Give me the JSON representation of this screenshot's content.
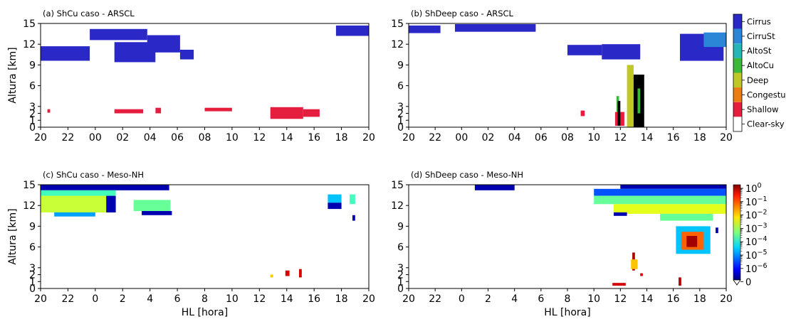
{
  "chart_data": [
    {
      "type": "heatmap",
      "title": "(a) ShCu caso - ARSCL",
      "ylabel": "Altura [km]",
      "xlabel": "",
      "xticks": [
        "20",
        "22",
        "00",
        "02",
        "04",
        "06",
        "08",
        "10",
        "12",
        "14",
        "16",
        "18",
        "20"
      ],
      "yticks": [
        "0",
        "1",
        "2",
        "3",
        "6",
        "9",
        "12",
        "15"
      ],
      "ylim": [
        0,
        15
      ],
      "data": [
        {
          "cls": "Cirrus",
          "x0": 0.0,
          "x1": 3.6,
          "y0": 9.6,
          "y1": 11.7
        },
        {
          "cls": "Cirrus",
          "x0": 3.6,
          "x1": 7.8,
          "y0": 12.6,
          "y1": 14.2
        },
        {
          "cls": "Cirrus",
          "x0": 5.4,
          "x1": 8.4,
          "y0": 9.4,
          "y1": 12.3
        },
        {
          "cls": "Cirrus",
          "x0": 7.8,
          "x1": 10.2,
          "y0": 10.8,
          "y1": 13.3
        },
        {
          "cls": "Cirrus",
          "x0": 10.2,
          "x1": 11.2,
          "y0": 9.8,
          "y1": 11.2
        },
        {
          "cls": "Cirrus",
          "x0": 21.6,
          "x1": 24.0,
          "y0": 13.2,
          "y1": 14.7
        },
        {
          "cls": "Shallow",
          "x0": 0.5,
          "x1": 0.7,
          "y0": 2.1,
          "y1": 2.6
        },
        {
          "cls": "Shallow",
          "x0": 5.4,
          "x1": 7.5,
          "y0": 2.0,
          "y1": 2.6
        },
        {
          "cls": "Shallow",
          "x0": 8.4,
          "x1": 8.8,
          "y0": 2.0,
          "y1": 2.8
        },
        {
          "cls": "Shallow",
          "x0": 12.0,
          "x1": 14.0,
          "y0": 2.3,
          "y1": 2.8
        },
        {
          "cls": "Shallow",
          "x0": 16.8,
          "x1": 19.2,
          "y0": 1.2,
          "y1": 2.9
        },
        {
          "cls": "Shallow",
          "x0": 19.2,
          "x1": 20.4,
          "y0": 1.5,
          "y1": 2.6
        }
      ]
    },
    {
      "type": "heatmap",
      "title": "(b) ShDeep caso - ARSCL",
      "ylabel": "",
      "xlabel": "",
      "xticks": [
        "20",
        "22",
        "00",
        "02",
        "04",
        "06",
        "08",
        "10",
        "12",
        "14",
        "16",
        "18",
        "20"
      ],
      "yticks": [
        "0",
        "1",
        "2",
        "3",
        "6",
        "9",
        "12",
        "15"
      ],
      "ylim": [
        0,
        15
      ],
      "data": [
        {
          "cls": "Cirrus",
          "x0": 0.0,
          "x1": 2.4,
          "y0": 13.6,
          "y1": 14.7
        },
        {
          "cls": "Cirrus",
          "x0": 3.5,
          "x1": 9.6,
          "y0": 13.8,
          "y1": 14.9
        },
        {
          "cls": "Cirrus",
          "x0": 12.0,
          "x1": 14.6,
          "y0": 10.4,
          "y1": 11.9
        },
        {
          "cls": "Cirrus",
          "x0": 14.6,
          "x1": 17.5,
          "y0": 9.8,
          "y1": 12.0
        },
        {
          "cls": "Cirrus",
          "x0": 20.5,
          "x1": 23.8,
          "y0": 9.6,
          "y1": 13.5
        },
        {
          "cls": "CirruSt",
          "x0": 22.3,
          "x1": 24.0,
          "y0": 11.6,
          "y1": 13.7
        },
        {
          "cls": "Shallow",
          "x0": 13.0,
          "x1": 13.3,
          "y0": 1.6,
          "y1": 2.4
        },
        {
          "cls": "Shallow",
          "x0": 15.6,
          "x1": 16.3,
          "y0": 0.2,
          "y1": 2.2
        },
        {
          "cls": "AltoCu",
          "x0": 15.7,
          "x1": 15.9,
          "y0": 2.2,
          "y1": 4.5
        },
        {
          "cls": "Congestus",
          "x0": 15.8,
          "x1": 16.0,
          "y0": 0.2,
          "y1": 3.8
        },
        {
          "cls": "Deep",
          "x0": 16.5,
          "x1": 17.0,
          "y0": 0.0,
          "y1": 9.0
        },
        {
          "cls": "Congestus",
          "x0": 17.0,
          "x1": 17.8,
          "y0": 0.0,
          "y1": 7.6
        },
        {
          "cls": "AltoCu",
          "x0": 17.3,
          "x1": 17.5,
          "y0": 2.0,
          "y1": 5.6
        }
      ]
    },
    {
      "type": "heatmap",
      "title": "(c) ShCu caso -  Meso-NH",
      "ylabel": "Altura [km]",
      "xlabel": "HL [hora]",
      "xticks": [
        "20",
        "22",
        "0",
        "2",
        "4",
        "6",
        "8",
        "10",
        "12",
        "14",
        "16",
        "18",
        "20"
      ],
      "yticks": [
        "0",
        "1",
        "2",
        "3",
        "6",
        "9",
        "12",
        "15"
      ],
      "ylim": [
        0,
        15
      ],
      "data": [
        {
          "v": 1e-06,
          "x0": 0.0,
          "x1": 9.4,
          "y0": 14.2,
          "y1": 15.0
        },
        {
          "v": 0.0003,
          "x0": 0.0,
          "x1": 5.5,
          "y0": 13.4,
          "y1": 14.2
        },
        {
          "v": 0.002,
          "x0": 0.0,
          "x1": 4.8,
          "y0": 11.0,
          "y1": 13.4
        },
        {
          "v": 3e-05,
          "x0": 1.0,
          "x1": 4.0,
          "y0": 10.4,
          "y1": 11.0
        },
        {
          "v": 1e-06,
          "x0": 4.8,
          "x1": 5.5,
          "y0": 11.0,
          "y1": 13.4
        },
        {
          "v": 0.0005,
          "x0": 6.8,
          "x1": 9.5,
          "y0": 11.2,
          "y1": 12.8
        },
        {
          "v": 1e-06,
          "x0": 7.4,
          "x1": 9.6,
          "y0": 10.6,
          "y1": 11.2
        },
        {
          "v": 5e-05,
          "x0": 21.0,
          "x1": 22.0,
          "y0": 12.4,
          "y1": 13.6
        },
        {
          "v": 1e-06,
          "x0": 21.0,
          "x1": 22.0,
          "y0": 11.5,
          "y1": 12.4
        },
        {
          "v": 0.0003,
          "x0": 22.6,
          "x1": 23.0,
          "y0": 12.2,
          "y1": 13.6
        },
        {
          "v": 1e-06,
          "x0": 22.8,
          "x1": 23.0,
          "y0": 9.8,
          "y1": 10.6
        },
        {
          "v": 0.3,
          "x0": 17.9,
          "x1": 18.2,
          "y0": 1.8,
          "y1": 2.6
        },
        {
          "v": 0.3,
          "x0": 18.9,
          "x1": 19.1,
          "y0": 1.6,
          "y1": 2.8
        },
        {
          "v": 0.01,
          "x0": 16.8,
          "x1": 17.0,
          "y0": 1.6,
          "y1": 2.0
        }
      ]
    },
    {
      "type": "heatmap",
      "title": "(d) ShDeep caso - Meso-NH",
      "ylabel": "",
      "xlabel": "HL [hora]",
      "xticks": [
        "20",
        "22",
        "0",
        "2",
        "4",
        "6",
        "8",
        "10",
        "12",
        "14",
        "16",
        "18",
        "20"
      ],
      "yticks": [
        "0",
        "1",
        "2",
        "3",
        "6",
        "9",
        "12",
        "15"
      ],
      "ylim": [
        0,
        15
      ],
      "data": [
        {
          "v": 1e-06,
          "x0": 5.0,
          "x1": 8.0,
          "y0": 14.2,
          "y1": 15.0
        },
        {
          "v": 1e-06,
          "x0": 16.0,
          "x1": 24.0,
          "y0": 14.4,
          "y1": 15.0
        },
        {
          "v": 1e-05,
          "x0": 14.0,
          "x1": 24.0,
          "y0": 13.4,
          "y1": 14.4
        },
        {
          "v": 0.0005,
          "x0": 14.0,
          "x1": 24.0,
          "y0": 12.2,
          "y1": 13.4
        },
        {
          "v": 0.003,
          "x0": 15.5,
          "x1": 24.0,
          "y0": 10.8,
          "y1": 12.2
        },
        {
          "v": 1e-06,
          "x0": 15.5,
          "x1": 16.5,
          "y0": 10.5,
          "y1": 11.0
        },
        {
          "v": 0.0005,
          "x0": 19.0,
          "x1": 23.0,
          "y0": 9.8,
          "y1": 10.8
        },
        {
          "v": 5e-05,
          "x0": 20.2,
          "x1": 22.8,
          "y0": 5.0,
          "y1": 9.0
        },
        {
          "v": 0.04,
          "x0": 20.6,
          "x1": 22.3,
          "y0": 5.6,
          "y1": 8.2
        },
        {
          "v": 0.6,
          "x0": 21.0,
          "x1": 21.8,
          "y0": 6.0,
          "y1": 7.6
        },
        {
          "v": 1e-06,
          "x0": 23.2,
          "x1": 23.4,
          "y0": 8.0,
          "y1": 8.8
        },
        {
          "v": 0.5,
          "x0": 16.9,
          "x1": 17.1,
          "y0": 2.6,
          "y1": 5.2
        },
        {
          "v": 0.01,
          "x0": 16.8,
          "x1": 17.3,
          "y0": 2.8,
          "y1": 4.2
        },
        {
          "v": 0.3,
          "x0": 17.5,
          "x1": 17.7,
          "y0": 1.8,
          "y1": 2.2
        },
        {
          "v": 0.3,
          "x0": 15.4,
          "x1": 16.4,
          "y0": 0.4,
          "y1": 0.8
        },
        {
          "v": 0.5,
          "x0": 20.4,
          "x1": 20.6,
          "y0": 0.4,
          "y1": 1.6
        }
      ]
    }
  ],
  "legend_categories": {
    "labels": [
      "Cirrus",
      "CirruSt",
      "AltoSt",
      "AltoCu",
      "Deep",
      "Congestu",
      "Shallow",
      "Clear-sky"
    ],
    "colors": [
      "#2a28c7",
      "#2b86d8",
      "#25b6b8",
      "#3eb83a",
      "#c0c828",
      "#ec7d12",
      "#e51d3e",
      "#ffffff"
    ]
  },
  "legend_colorbar": {
    "ticks": [
      "10",
      "10",
      "10",
      "10",
      "10",
      "10",
      "10",
      "0"
    ],
    "exponents": [
      "0",
      "−1",
      "−2",
      "−3",
      "−4",
      "−5",
      "−6",
      ""
    ]
  }
}
